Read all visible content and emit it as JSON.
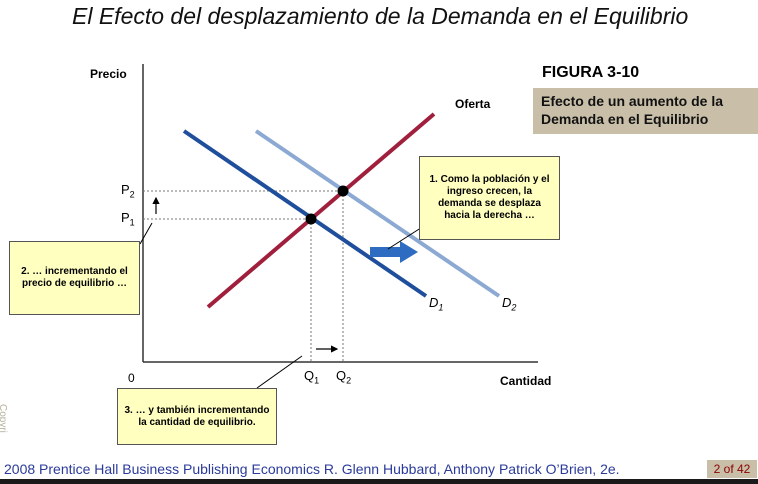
{
  "slide_title": "El Efecto del desplazamiento de la Demanda en el Equilibrio",
  "figure_number": "FIGURA 3-10",
  "caption": "Efecto de un aumento de la Demanda en el  Equilibrio",
  "axes": {
    "y_label": "Precio",
    "x_label": "Cantidad",
    "origin": "0",
    "p1": "P",
    "p1_sub": "1",
    "p2": "P",
    "p2_sub": "2",
    "q1": "Q",
    "q1_sub": "1",
    "q2": "Q",
    "q2_sub": "2"
  },
  "curves": {
    "supply": "Oferta",
    "d1": "D",
    "d1_sub": "1",
    "d2": "D",
    "d2_sub": "2"
  },
  "colors": {
    "supply": "#a01f3c",
    "demand1": "#1f4e9c",
    "demand2": "#8ca9d3",
    "shift_arrow": "#2d6cc0"
  },
  "notes": {
    "note1": "1. Como la población y el ingreso crecen, la demanda se desplaza hacia la derecha …",
    "note2": "2.   … incrementando el precio de equilibrio …",
    "note3": "3.   … y también incrementando la cantidad de equilibrio."
  },
  "footer": {
    "text": "2008 Prentice Hall Business Publishing   Economics  R. Glenn Hubbard, Anthony Patrick O’Brien, 2e.",
    "page": "2 of 42",
    "side_mark": "Copyri"
  }
}
